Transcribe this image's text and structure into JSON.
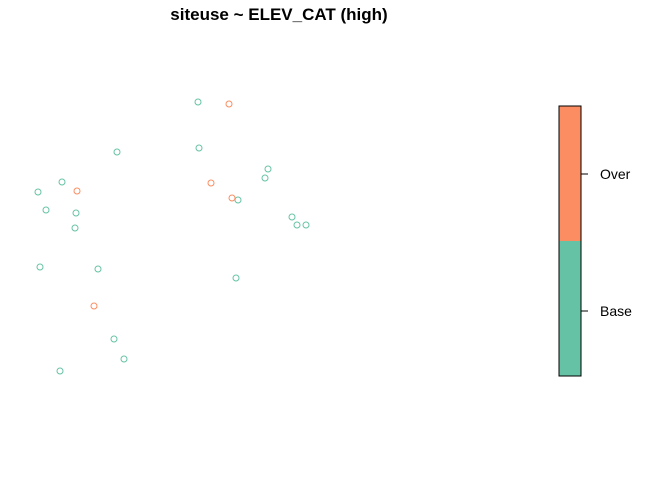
{
  "chart_data": {
    "type": "scatter",
    "title": "siteuse ~ ELEV_CAT (high)",
    "xlabel": "",
    "ylabel": "",
    "axes_shown": false,
    "grid": false,
    "legend_placement": "right",
    "legend": {
      "type": "colorbar",
      "categories": [
        {
          "label": "Base",
          "color": "#66C2A5"
        },
        {
          "label": "Over",
          "color": "#FC8D62"
        }
      ]
    },
    "series": [
      {
        "category": "Base",
        "color": "#66C2A5",
        "points": [
          [
            198,
            102
          ],
          [
            117,
            152
          ],
          [
            199,
            148
          ],
          [
            62,
            182
          ],
          [
            38,
            192
          ],
          [
            46,
            210
          ],
          [
            76,
            213
          ],
          [
            75,
            228
          ],
          [
            268,
            169
          ],
          [
            265,
            178
          ],
          [
            238,
            200
          ],
          [
            292,
            217
          ],
          [
            297,
            225
          ],
          [
            306,
            225
          ],
          [
            40,
            267
          ],
          [
            98,
            269
          ],
          [
            236,
            278
          ],
          [
            114,
            339
          ],
          [
            124,
            359
          ],
          [
            60,
            371
          ]
        ]
      },
      {
        "category": "Over",
        "color": "#FC8D62",
        "points": [
          [
            229,
            104
          ],
          [
            77,
            191
          ],
          [
            211,
            183
          ],
          [
            232,
            198
          ],
          [
            94,
            306
          ]
        ]
      }
    ]
  }
}
